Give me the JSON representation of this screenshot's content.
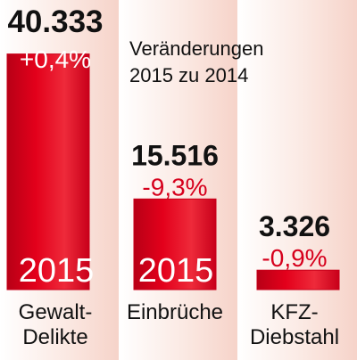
{
  "subtitle_line1": "Veränderungen",
  "subtitle_line2": "2015 zu 2014",
  "colors": {
    "bar": "#e3001b",
    "bar_dark": "#c8001a",
    "bar_highlight": "#f2545f",
    "bg_light": "#fbe9e3",
    "bg_mid": "#f7d2c8",
    "change_on_bar": "#ffffff",
    "change_default": "#d6001c"
  },
  "chart_data": {
    "type": "bar",
    "categories": [
      "Gewalt-Delikte",
      "Einbrüche",
      "KFZ-Diebstahl"
    ],
    "values": [
      40333,
      15516,
      3326
    ],
    "value_labels": [
      "40.333",
      "15.516",
      "3.326"
    ],
    "changes": [
      "+0,4%",
      "-9,3%",
      "-0,9%"
    ],
    "bar_year_labels": [
      "2015",
      "2015",
      ""
    ],
    "category_lines": [
      [
        "Gewalt-",
        "Delikte"
      ],
      [
        "Einbrüche"
      ],
      [
        "KFZ-",
        "Diebstahl"
      ]
    ],
    "ylim": [
      0,
      45000
    ]
  }
}
